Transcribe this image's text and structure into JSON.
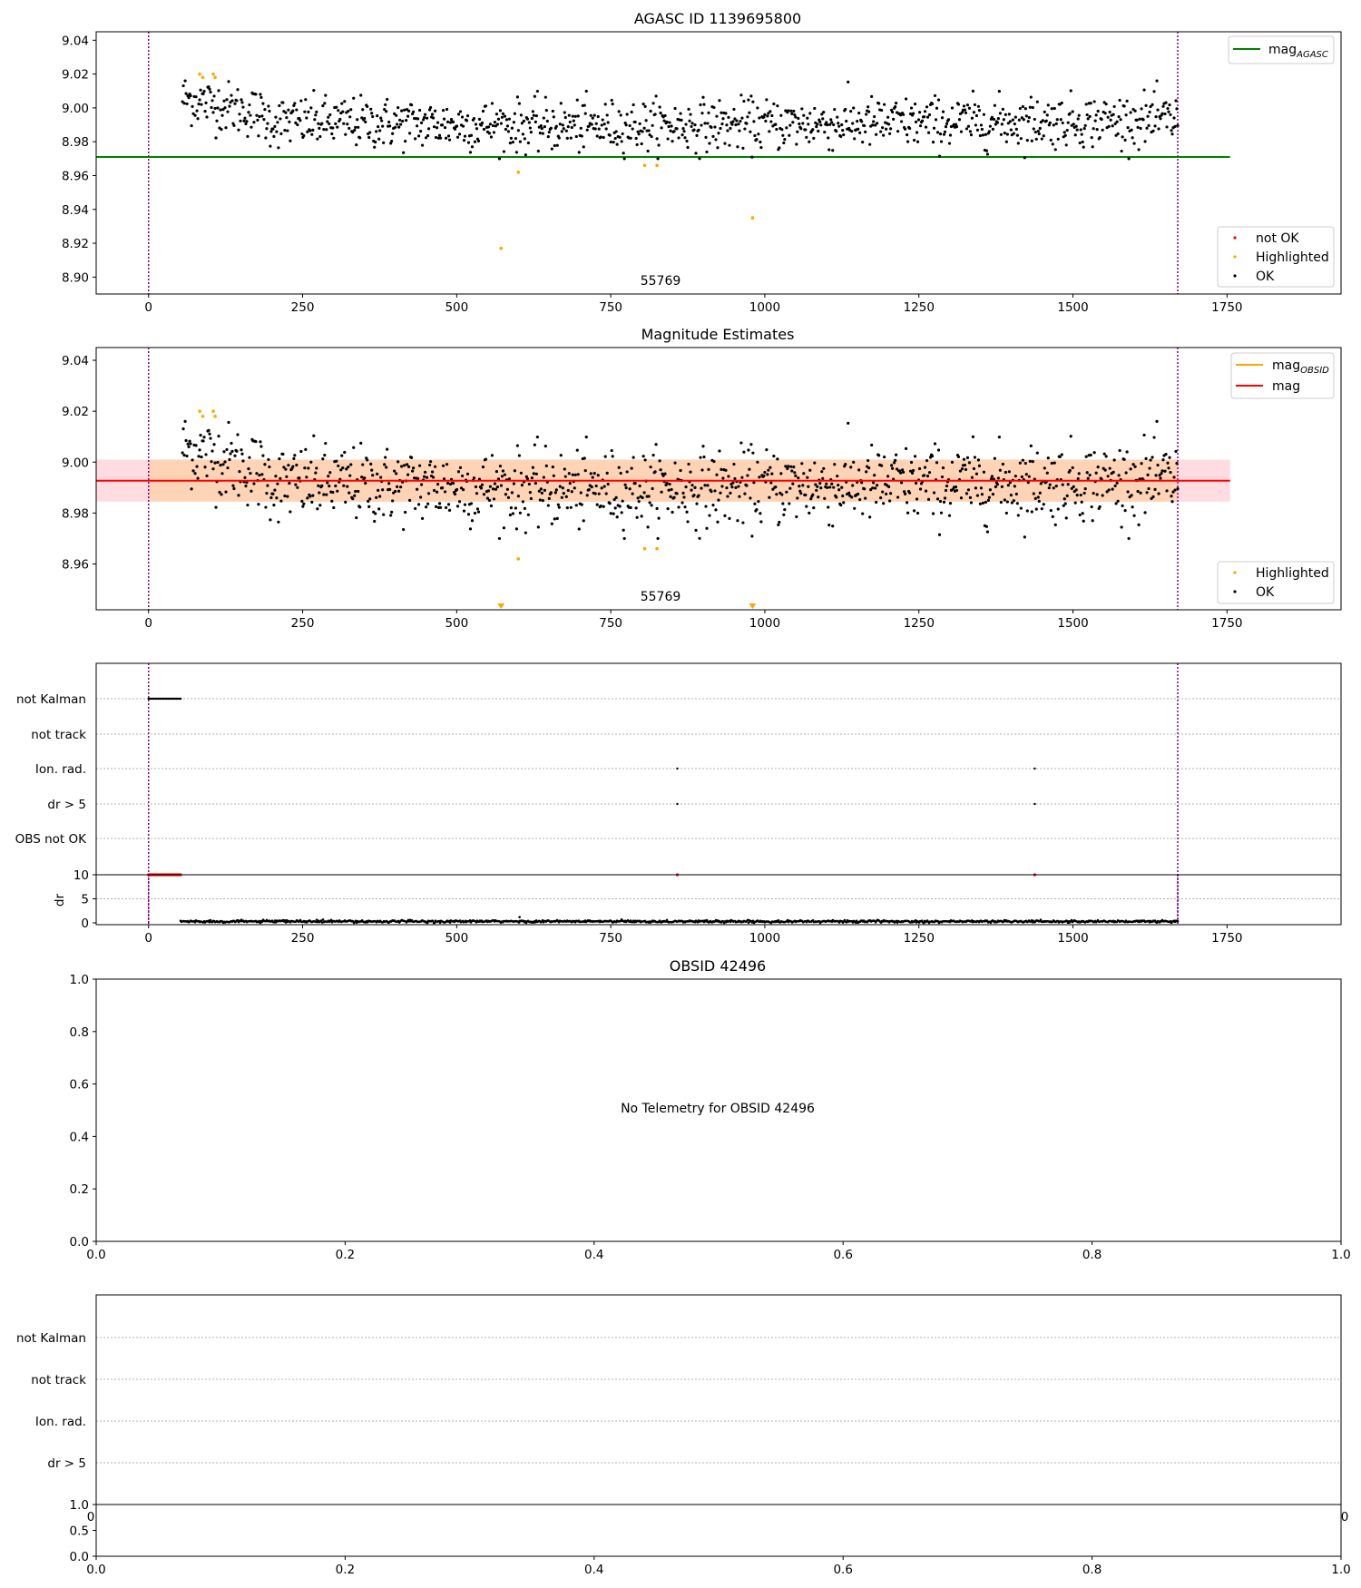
{
  "colors": {
    "ok": "#000000",
    "highlighted": "#ffa500",
    "not_ok": "#ff0000",
    "mag_agasc_line": "#008000",
    "mag_line": "#ff0000",
    "mag_obsid_line": "#ffa500",
    "band_outer": "#ffc0cb",
    "band_inner": "#ffd2b0",
    "vline": "#800080",
    "grid": "#b0b0b0"
  },
  "panel1": {
    "title": "AGASC ID 1139695800",
    "annotation": "55769",
    "legend_top": [
      {
        "label": "mag",
        "sub": "AGASC",
        "color": "#008000"
      }
    ],
    "legend_bottom": [
      {
        "label": "not OK",
        "color": "#ff0000"
      },
      {
        "label": "Highlighted",
        "color": "#ffa500"
      },
      {
        "label": "OK",
        "color": "#000000"
      }
    ],
    "xticks": [
      "0",
      "250",
      "500",
      "750",
      "1000",
      "1250",
      "1500",
      "1750"
    ],
    "yticks": [
      "8.90",
      "8.92",
      "8.94",
      "8.96",
      "8.98",
      "9.00",
      "9.02",
      "9.04"
    ]
  },
  "panel2": {
    "title": "Magnitude Estimates",
    "annotation": "55769",
    "legend_top": [
      {
        "label": "mag",
        "sub": "OBSID",
        "color": "#ffa500"
      },
      {
        "label": "mag",
        "sub": "",
        "color": "#ff0000"
      }
    ],
    "legend_bottom": [
      {
        "label": "Highlighted",
        "color": "#ffa500"
      },
      {
        "label": "OK",
        "color": "#000000"
      }
    ],
    "xticks": [
      "0",
      "250",
      "500",
      "750",
      "1000",
      "1250",
      "1500",
      "1750"
    ],
    "yticks": [
      "8.96",
      "8.98",
      "9.00",
      "9.02",
      "9.04"
    ]
  },
  "panel3": {
    "flags": [
      "not Kalman",
      "not track",
      "Ion. rad.",
      "dr > 5",
      "OBS not OK"
    ],
    "dr_label": "dr",
    "dr_yticks": [
      "0",
      "5",
      "10"
    ],
    "xticks": [
      "0",
      "250",
      "500",
      "750",
      "1000",
      "1250",
      "1500",
      "1750"
    ]
  },
  "panel4": {
    "title": "OBSID 42496",
    "message": "No Telemetry for OBSID 42496",
    "xticks": [
      "0.0",
      "0.2",
      "0.4",
      "0.6",
      "0.8",
      "1.0"
    ],
    "yticks": [
      "0.0",
      "0.2",
      "0.4",
      "0.6",
      "0.8",
      "1.0"
    ]
  },
  "panel5": {
    "flags": [
      "not Kalman",
      "not track",
      "Ion. rad.",
      "dr > 5"
    ],
    "hidden_xticks": [
      "0",
      "0"
    ],
    "sub_yticks": [
      "0.0",
      "0.5",
      "1.0"
    ],
    "xticks": [
      "0.0",
      "0.2",
      "0.4",
      "0.6",
      "0.8",
      "1.0"
    ]
  },
  "chart_data": [
    {
      "type": "scatter",
      "title": "AGASC ID 1139695800",
      "xlim": [
        -85,
        1935
      ],
      "ylim": [
        8.89,
        9.045
      ],
      "annotation": {
        "text": "55769",
        "x": 835
      },
      "vlines": [
        0,
        1670
      ],
      "hlines": [
        {
          "name": "mag_AGASC",
          "y": 8.971
        }
      ],
      "series": [
        {
          "name": "OK",
          "trend": [
            [
              55,
              9.006
            ],
            [
              175,
              8.997
            ],
            [
              200,
              8.992
            ],
            [
              700,
              8.989
            ],
            [
              1200,
              8.991
            ],
            [
              1670,
              8.993
            ]
          ],
          "x_range": [
            55,
            1670
          ],
          "count": 1100,
          "spread": 0.0075
        },
        {
          "name": "Highlighted",
          "points": [
            [
              83,
              9.02
            ],
            [
              88,
              9.018
            ],
            [
              105,
              9.02
            ],
            [
              108,
              9.018
            ],
            [
              572,
              8.917
            ],
            [
              600,
              8.962
            ],
            [
              805,
              8.966
            ],
            [
              825,
              8.966
            ],
            [
              980,
              8.935
            ]
          ]
        },
        {
          "name": "not OK",
          "points": []
        }
      ]
    },
    {
      "type": "scatter",
      "title": "Magnitude Estimates",
      "xlim": [
        -85,
        1935
      ],
      "ylim": [
        8.942,
        9.045
      ],
      "annotation": {
        "text": "55769",
        "x": 835
      },
      "vlines": [
        0,
        1670
      ],
      "hlines": [
        {
          "name": "mag",
          "y": 8.9927
        }
      ],
      "bands": [
        {
          "name": "outer",
          "x": [
            -85,
            1755
          ],
          "y": [
            8.9845,
            9.001
          ]
        },
        {
          "name": "inner",
          "x": [
            0,
            1670
          ],
          "y": [
            8.9845,
            9.001
          ]
        }
      ],
      "series": [
        {
          "name": "OK",
          "trend": [
            [
              55,
              9.006
            ],
            [
              175,
              8.997
            ],
            [
              200,
              8.992
            ],
            [
              700,
              8.989
            ],
            [
              1200,
              8.991
            ],
            [
              1670,
              8.993
            ]
          ],
          "x_range": [
            55,
            1670
          ],
          "count": 1100,
          "spread": 0.0075
        },
        {
          "name": "Highlighted",
          "points": [
            [
              83,
              9.02
            ],
            [
              88,
              9.018
            ],
            [
              105,
              9.02
            ],
            [
              108,
              9.018
            ],
            [
              600,
              8.962
            ],
            [
              805,
              8.966
            ],
            [
              825,
              8.966
            ]
          ]
        },
        {
          "name": "Highlighted (below axis)",
          "points": [
            [
              572,
              8.943
            ],
            [
              980,
              8.943
            ]
          ]
        }
      ]
    },
    {
      "type": "scatter",
      "xlim": [
        -85,
        1935
      ],
      "flag_rows": [
        "not Kalman",
        "not track",
        "Ion. rad.",
        "dr > 5",
        "OBS not OK"
      ],
      "flag_points": [
        {
          "row": "not Kalman",
          "x_range": [
            0,
            52
          ],
          "count": 24
        },
        {
          "row": "Ion. rad.",
          "x": [
            858,
            1438
          ]
        },
        {
          "row": "dr > 5",
          "x": [
            858,
            1438
          ]
        }
      ],
      "dr": {
        "ylim": [
          0,
          10
        ],
        "ok_x_range": [
          52,
          1670
        ],
        "ok_level": 0.3,
        "ok_spread": 0.12,
        "outlier": [
          [
            602,
            1.2
          ]
        ],
        "clipped_x_range": [
          0,
          52
        ],
        "clipped_extra_x": [
          858,
          1438
        ]
      }
    },
    {
      "type": "scatter",
      "title": "OBSID 42496",
      "xlim": [
        0,
        1
      ],
      "ylim": [
        0,
        1
      ]
    }
  ]
}
